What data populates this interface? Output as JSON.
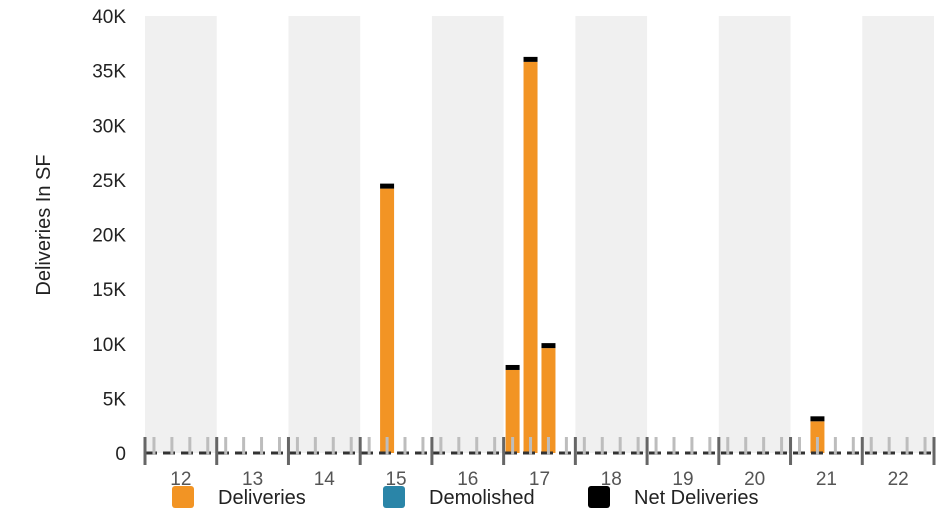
{
  "chart_data": {
    "type": "bar",
    "ylabel": "Deliveries In SF",
    "xlabel": "",
    "ylim": [
      0,
      40000
    ],
    "y_ticks": [
      0,
      5000,
      10000,
      15000,
      20000,
      25000,
      30000,
      35000,
      40000
    ],
    "y_tick_labels": [
      "0",
      "5K",
      "10K",
      "15K",
      "20K",
      "25K",
      "30K",
      "35K",
      "40K"
    ],
    "x_ticks": [
      "12",
      "13",
      "14",
      "15",
      "16",
      "17",
      "18",
      "19",
      "20",
      "21",
      "22"
    ],
    "bars": [
      {
        "year": "15",
        "quarter": 2,
        "deliveries": 24200,
        "demolished": 0,
        "net_deliveries": 24200
      },
      {
        "year": "17",
        "quarter": 1,
        "deliveries": 7600,
        "demolished": 0,
        "net_deliveries": 7600
      },
      {
        "year": "17",
        "quarter": 2,
        "deliveries": 35800,
        "demolished": 0,
        "net_deliveries": 35800
      },
      {
        "year": "17",
        "quarter": 3,
        "deliveries": 9600,
        "demolished": 0,
        "net_deliveries": 9600
      },
      {
        "year": "21",
        "quarter": 2,
        "deliveries": 2900,
        "demolished": 0,
        "net_deliveries": 2900
      }
    ],
    "legend": [
      {
        "name": "Deliveries",
        "color": "#f29424"
      },
      {
        "name": "Demolished",
        "color": "#2a85a8"
      },
      {
        "name": "Net Deliveries",
        "color": "#000000"
      }
    ],
    "colors": {
      "band": "#f0f0f0",
      "deliveries": "#f29424",
      "demolished": "#2a85a8",
      "net": "#000000",
      "tick_gray": "#bdbdbd",
      "axis_text": "#222222",
      "x_label_text": "#555555"
    }
  }
}
